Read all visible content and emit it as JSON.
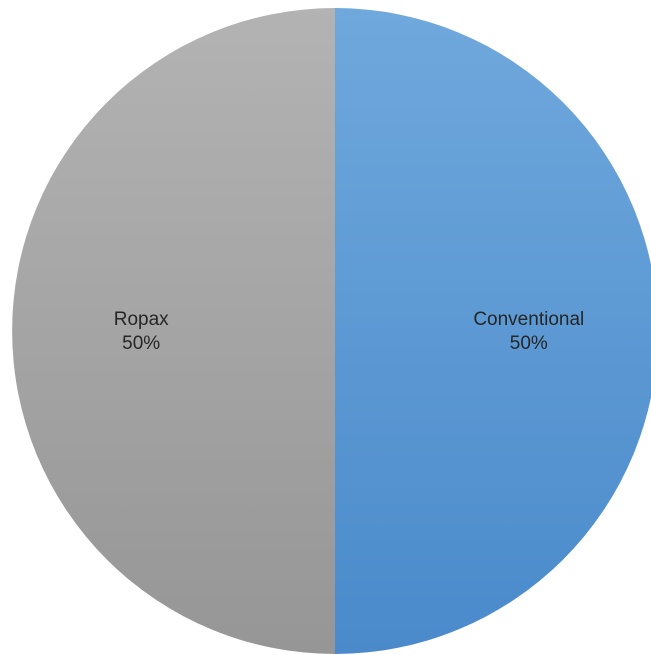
{
  "chart_data": {
    "type": "pie",
    "categories": [
      "Conventional",
      "Ropax"
    ],
    "values": [
      50,
      50
    ],
    "labels": [
      "50%",
      "50%"
    ],
    "colors": [
      "#5b9bd5",
      "#a5a5a5"
    ],
    "gradient_stops": [
      [
        "#6fa8dc",
        "#4a8acb"
      ],
      [
        "#b3b3b3",
        "#969696"
      ]
    ],
    "start_angle_deg": 0,
    "direction": "clockwise",
    "title": "",
    "legend": "none"
  }
}
